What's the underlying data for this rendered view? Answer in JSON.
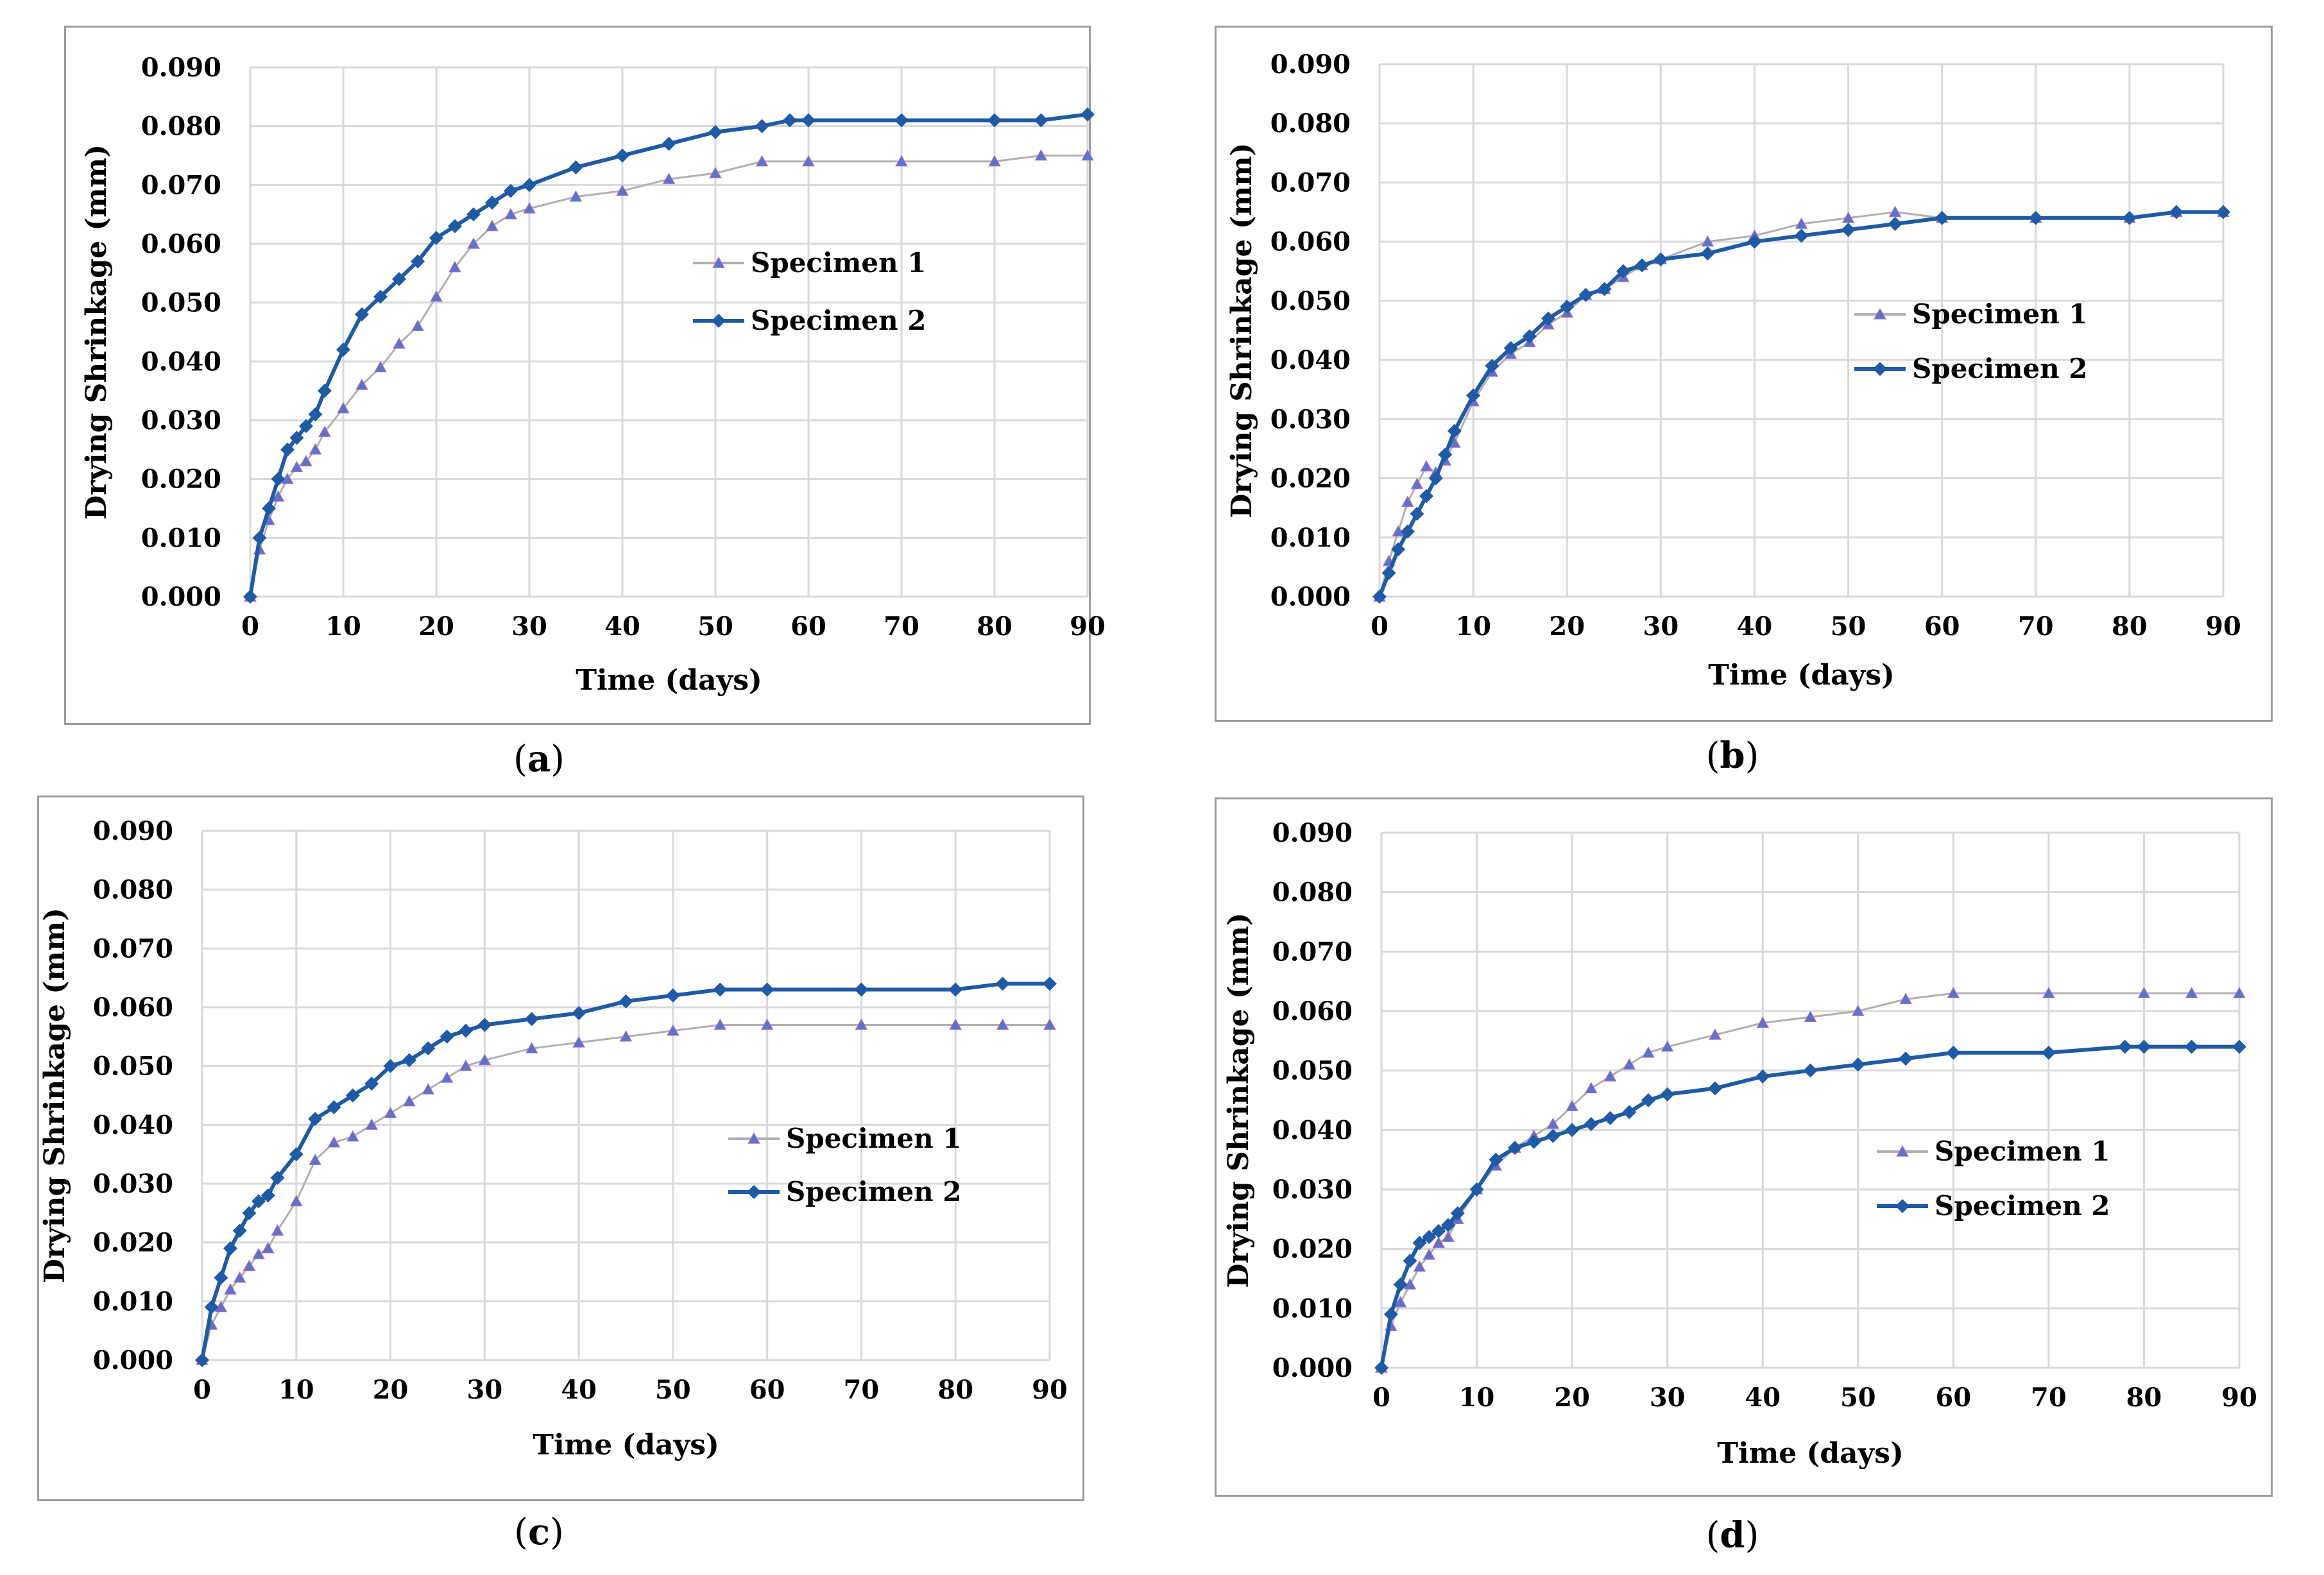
{
  "chart_data": [
    {
      "type": "line",
      "panel": "a",
      "caption_open": "(",
      "caption_letter": "a",
      "caption_close": ")",
      "xlabel": "Time (days)",
      "ylabel": "Drying Shrinkage (mm)",
      "xlim": [
        0,
        90
      ],
      "ylim": [
        0,
        0.09
      ],
      "xticks": [
        "0",
        "10",
        "20",
        "30",
        "40",
        "50",
        "60",
        "70",
        "80",
        "90"
      ],
      "yticks": [
        "0.000",
        "0.010",
        "0.020",
        "0.030",
        "0.040",
        "0.050",
        "0.060",
        "0.070",
        "0.080",
        "0.090"
      ],
      "grid": true,
      "legend_position": "center-right",
      "series": [
        {
          "name": "Specimen 1",
          "marker": "triangle",
          "color": "#5b74c7",
          "line_color": "#b0b0b0",
          "x": [
            0,
            1,
            2,
            3,
            4,
            5,
            6,
            7,
            8,
            10,
            12,
            14,
            16,
            18,
            20,
            22,
            24,
            26,
            28,
            30,
            35,
            40,
            45,
            50,
            55,
            60,
            70,
            80,
            85,
            90
          ],
          "y": [
            0,
            0.008,
            0.013,
            0.017,
            0.02,
            0.022,
            0.023,
            0.025,
            0.028,
            0.032,
            0.036,
            0.039,
            0.043,
            0.046,
            0.051,
            0.056,
            0.06,
            0.063,
            0.065,
            0.066,
            0.068,
            0.069,
            0.071,
            0.072,
            0.074,
            0.074,
            0.074,
            0.074,
            0.075,
            0.075
          ]
        },
        {
          "name": "Specimen 2",
          "marker": "diamond",
          "color": "#1f5aa6",
          "line_color": "#1f5aa6",
          "x": [
            0,
            1,
            2,
            3,
            4,
            5,
            6,
            7,
            8,
            10,
            12,
            14,
            16,
            18,
            20,
            22,
            24,
            26,
            28,
            30,
            35,
            40,
            45,
            50,
            55,
            58,
            60,
            70,
            80,
            85,
            90
          ],
          "y": [
            0,
            0.01,
            0.015,
            0.02,
            0.025,
            0.027,
            0.029,
            0.031,
            0.035,
            0.042,
            0.048,
            0.051,
            0.054,
            0.057,
            0.061,
            0.063,
            0.065,
            0.067,
            0.069,
            0.07,
            0.073,
            0.075,
            0.077,
            0.079,
            0.08,
            0.081,
            0.081,
            0.081,
            0.081,
            0.081,
            0.082
          ]
        }
      ]
    },
    {
      "type": "line",
      "panel": "b",
      "caption_open": "(",
      "caption_letter": "b",
      "caption_close": ")",
      "xlabel": "Time (days)",
      "ylabel": "Drying Shrinkage (mm)",
      "xlim": [
        0,
        90
      ],
      "ylim": [
        0,
        0.09
      ],
      "xticks": [
        "0",
        "10",
        "20",
        "30",
        "40",
        "50",
        "60",
        "70",
        "80",
        "90"
      ],
      "yticks": [
        "0.000",
        "0.010",
        "0.020",
        "0.030",
        "0.040",
        "0.050",
        "0.060",
        "0.070",
        "0.080",
        "0.090"
      ],
      "grid": true,
      "legend_position": "center-right",
      "series": [
        {
          "name": "Specimen 1",
          "marker": "triangle",
          "color": "#5b74c7",
          "line_color": "#b0b0b0",
          "x": [
            0,
            1,
            2,
            3,
            4,
            5,
            6,
            7,
            8,
            10,
            12,
            14,
            16,
            18,
            20,
            22,
            24,
            26,
            28,
            30,
            35,
            40,
            45,
            50,
            55,
            60,
            70,
            80,
            85,
            90
          ],
          "y": [
            0,
            0.006,
            0.011,
            0.016,
            0.019,
            0.022,
            0.021,
            0.023,
            0.026,
            0.033,
            0.038,
            0.041,
            0.043,
            0.046,
            0.048,
            0.051,
            0.052,
            0.054,
            0.056,
            0.057,
            0.06,
            0.061,
            0.063,
            0.064,
            0.065,
            0.064,
            0.064,
            0.064,
            0.065,
            0.065
          ]
        },
        {
          "name": "Specimen 2",
          "marker": "diamond",
          "color": "#1f5aa6",
          "line_color": "#1f5aa6",
          "x": [
            0,
            1,
            2,
            3,
            4,
            5,
            6,
            7,
            8,
            10,
            12,
            14,
            16,
            18,
            20,
            22,
            24,
            26,
            28,
            30,
            35,
            40,
            45,
            50,
            55,
            60,
            70,
            80,
            85,
            90
          ],
          "y": [
            0,
            0.004,
            0.008,
            0.011,
            0.014,
            0.017,
            0.02,
            0.024,
            0.028,
            0.034,
            0.039,
            0.042,
            0.044,
            0.047,
            0.049,
            0.051,
            0.052,
            0.055,
            0.056,
            0.057,
            0.058,
            0.06,
            0.061,
            0.062,
            0.063,
            0.064,
            0.064,
            0.064,
            0.065,
            0.065
          ]
        }
      ]
    },
    {
      "type": "line",
      "panel": "c",
      "caption_open": "(",
      "caption_letter": "c",
      "caption_close": ")",
      "xlabel": "Time (days)",
      "ylabel": "Drying Shrinkage (mm)",
      "xlim": [
        0,
        90
      ],
      "ylim": [
        0,
        0.09
      ],
      "xticks": [
        "0",
        "10",
        "20",
        "30",
        "40",
        "50",
        "60",
        "70",
        "80",
        "90"
      ],
      "yticks": [
        "0.000",
        "0.010",
        "0.020",
        "0.030",
        "0.040",
        "0.050",
        "0.060",
        "0.070",
        "0.080",
        "0.090"
      ],
      "grid": true,
      "legend_position": "center-right",
      "series": [
        {
          "name": "Specimen 1",
          "marker": "triangle",
          "color": "#5b74c7",
          "line_color": "#b0b0b0",
          "x": [
            0,
            1,
            2,
            3,
            4,
            5,
            6,
            7,
            8,
            10,
            12,
            14,
            16,
            18,
            20,
            22,
            24,
            26,
            28,
            30,
            35,
            40,
            45,
            50,
            55,
            60,
            70,
            80,
            85,
            90
          ],
          "y": [
            0,
            0.006,
            0.009,
            0.012,
            0.014,
            0.016,
            0.018,
            0.019,
            0.022,
            0.027,
            0.034,
            0.037,
            0.038,
            0.04,
            0.042,
            0.044,
            0.046,
            0.048,
            0.05,
            0.051,
            0.053,
            0.054,
            0.055,
            0.056,
            0.057,
            0.057,
            0.057,
            0.057,
            0.057,
            0.057
          ]
        },
        {
          "name": "Specimen 2",
          "marker": "diamond",
          "color": "#1f5aa6",
          "line_color": "#1f5aa6",
          "x": [
            0,
            1,
            2,
            3,
            4,
            5,
            6,
            7,
            8,
            10,
            12,
            14,
            16,
            18,
            20,
            22,
            24,
            26,
            28,
            30,
            35,
            40,
            45,
            50,
            55,
            60,
            70,
            80,
            85,
            90
          ],
          "y": [
            0,
            0.009,
            0.014,
            0.019,
            0.022,
            0.025,
            0.027,
            0.028,
            0.031,
            0.035,
            0.041,
            0.043,
            0.045,
            0.047,
            0.05,
            0.051,
            0.053,
            0.055,
            0.056,
            0.057,
            0.058,
            0.059,
            0.061,
            0.062,
            0.063,
            0.063,
            0.063,
            0.063,
            0.064,
            0.064
          ]
        }
      ]
    },
    {
      "type": "line",
      "panel": "d",
      "caption_open": "(",
      "caption_letter": "d",
      "caption_close": ")",
      "xlabel": "Time (days)",
      "ylabel": "Drying Shrinkage (mm)",
      "xlim": [
        0,
        90
      ],
      "ylim": [
        0,
        0.09
      ],
      "xticks": [
        "0",
        "10",
        "20",
        "30",
        "40",
        "50",
        "60",
        "70",
        "80",
        "90"
      ],
      "yticks": [
        "0.000",
        "0.010",
        "0.020",
        "0.030",
        "0.040",
        "0.050",
        "0.060",
        "0.070",
        "0.080",
        "0.090"
      ],
      "grid": true,
      "legend_position": "center-right",
      "series": [
        {
          "name": "Specimen 1",
          "marker": "triangle",
          "color": "#5b74c7",
          "line_color": "#b0b0b0",
          "x": [
            0,
            1,
            2,
            3,
            4,
            5,
            6,
            7,
            8,
            10,
            12,
            14,
            16,
            18,
            20,
            22,
            24,
            26,
            28,
            30,
            35,
            40,
            45,
            50,
            55,
            60,
            70,
            80,
            85,
            90
          ],
          "y": [
            0,
            0.007,
            0.011,
            0.014,
            0.017,
            0.019,
            0.021,
            0.022,
            0.025,
            0.03,
            0.034,
            0.037,
            0.039,
            0.041,
            0.044,
            0.047,
            0.049,
            0.051,
            0.053,
            0.054,
            0.056,
            0.058,
            0.059,
            0.06,
            0.062,
            0.063,
            0.063,
            0.063,
            0.063,
            0.063
          ]
        },
        {
          "name": "Specimen 2",
          "marker": "diamond",
          "color": "#1f5aa6",
          "line_color": "#1f5aa6",
          "x": [
            0,
            1,
            2,
            3,
            4,
            5,
            6,
            7,
            8,
            10,
            12,
            14,
            16,
            18,
            20,
            22,
            24,
            26,
            28,
            30,
            35,
            40,
            45,
            50,
            55,
            60,
            70,
            78,
            80,
            85,
            90
          ],
          "y": [
            0,
            0.009,
            0.014,
            0.018,
            0.021,
            0.022,
            0.023,
            0.024,
            0.026,
            0.03,
            0.035,
            0.037,
            0.038,
            0.039,
            0.04,
            0.041,
            0.042,
            0.043,
            0.045,
            0.046,
            0.047,
            0.049,
            0.05,
            0.051,
            0.052,
            0.053,
            0.053,
            0.054,
            0.054,
            0.054,
            0.054
          ]
        }
      ]
    }
  ]
}
